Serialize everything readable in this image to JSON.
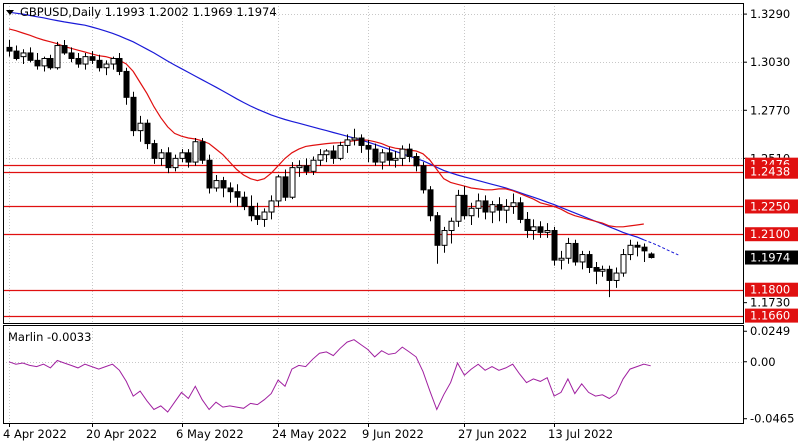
{
  "header": {
    "symbol_line": "GBPUSD,Daily  1.1993 1.2002 1.1969 1.1974"
  },
  "indicator": {
    "label": "Marlin -0.0033"
  },
  "colors": {
    "bull": "#000000",
    "bear": "#000000",
    "ma_fast": "#e01010",
    "ma_slow": "#1a1ad8",
    "level": "#e01010",
    "osc": "#a020a0",
    "grid": "#c8c8c8"
  },
  "chart_data": [
    {
      "type": "candlestick",
      "title": "GBPUSD,Daily",
      "ohlc_header": {
        "open": 1.1993,
        "high": 1.2002,
        "low": 1.1969,
        "close": 1.1974
      },
      "y_ticks": [
        "1.3290",
        "1.3030",
        "1.2770",
        "1.2510",
        "1.2250",
        "1.2100",
        "1.1974",
        "1.1800",
        "1.1730",
        "1.1660"
      ],
      "x_ticks": [
        "4 Apr 2022",
        "20 Apr 2022",
        "6 May 2022",
        "24 May 2022",
        "9 Jun 2022",
        "27 Jun 2022",
        "13 Jul 2022"
      ],
      "ylim": [
        1.162,
        1.335
      ],
      "levels": [
        {
          "value": 1.2476,
          "label": "1.2476"
        },
        {
          "value": 1.2438,
          "label": "1.2438"
        },
        {
          "value": 1.225,
          "label": "1.2250"
        },
        {
          "value": 1.21,
          "label": "1.2100"
        },
        {
          "value": 1.18,
          "label": "1.1800"
        },
        {
          "value": 1.166,
          "label": "1.1660"
        }
      ],
      "current_price": {
        "value": 1.1974,
        "label": "1.1974"
      },
      "candles": [
        [
          1.311,
          1.315,
          1.306,
          1.309
        ],
        [
          1.309,
          1.312,
          1.304,
          1.305
        ],
        [
          1.306,
          1.31,
          1.302,
          1.308
        ],
        [
          1.308,
          1.311,
          1.303,
          1.304
        ],
        [
          1.304,
          1.308,
          1.299,
          1.301
        ],
        [
          1.301,
          1.306,
          1.298,
          1.305
        ],
        [
          1.305,
          1.307,
          1.299,
          1.3
        ],
        [
          1.3,
          1.314,
          1.299,
          1.312
        ],
        [
          1.312,
          1.315,
          1.307,
          1.308
        ],
        [
          1.308,
          1.311,
          1.303,
          1.305
        ],
        [
          1.305,
          1.308,
          1.3,
          1.302
        ],
        [
          1.302,
          1.308,
          1.299,
          1.306
        ],
        [
          1.306,
          1.309,
          1.302,
          1.304
        ],
        [
          1.304,
          1.307,
          1.298,
          1.3
        ],
        [
          1.3,
          1.304,
          1.296,
          1.302
        ],
        [
          1.302,
          1.306,
          1.299,
          1.305
        ],
        [
          1.305,
          1.308,
          1.296,
          1.298
        ],
        [
          1.298,
          1.3,
          1.28,
          1.284
        ],
        [
          1.284,
          1.287,
          1.263,
          1.266
        ],
        [
          1.266,
          1.274,
          1.26,
          1.27
        ],
        [
          1.27,
          1.272,
          1.256,
          1.259
        ],
        [
          1.259,
          1.261,
          1.248,
          1.251
        ],
        [
          1.251,
          1.256,
          1.247,
          1.254
        ],
        [
          1.254,
          1.257,
          1.243,
          1.246
        ],
        [
          1.246,
          1.253,
          1.244,
          1.251
        ],
        [
          1.251,
          1.256,
          1.249,
          1.254
        ],
        [
          1.254,
          1.256,
          1.246,
          1.249
        ],
        [
          1.249,
          1.262,
          1.247,
          1.26
        ],
        [
          1.26,
          1.262,
          1.248,
          1.25
        ],
        [
          1.25,
          1.253,
          1.232,
          1.235
        ],
        [
          1.235,
          1.242,
          1.233,
          1.239
        ],
        [
          1.239,
          1.241,
          1.23,
          1.235
        ],
        [
          1.235,
          1.238,
          1.227,
          1.233
        ],
        [
          1.233,
          1.237,
          1.225,
          1.23
        ],
        [
          1.23,
          1.233,
          1.223,
          1.225
        ],
        [
          1.225,
          1.231,
          1.217,
          1.22
        ],
        [
          1.22,
          1.227,
          1.215,
          1.218
        ],
        [
          1.218,
          1.224,
          1.214,
          1.222
        ],
        [
          1.222,
          1.231,
          1.218,
          1.228
        ],
        [
          1.228,
          1.242,
          1.225,
          1.241
        ],
        [
          1.241,
          1.245,
          1.228,
          1.23
        ],
        [
          1.23,
          1.249,
          1.229,
          1.246
        ],
        [
          1.246,
          1.25,
          1.241,
          1.247
        ],
        [
          1.247,
          1.251,
          1.242,
          1.244
        ],
        [
          1.244,
          1.252,
          1.242,
          1.25
        ],
        [
          1.25,
          1.256,
          1.247,
          1.253
        ],
        [
          1.253,
          1.256,
          1.249,
          1.255
        ],
        [
          1.255,
          1.258,
          1.248,
          1.251
        ],
        [
          1.251,
          1.26,
          1.25,
          1.258
        ],
        [
          1.258,
          1.264,
          1.254,
          1.261
        ],
        [
          1.261,
          1.267,
          1.258,
          1.262
        ],
        [
          1.262,
          1.264,
          1.254,
          1.258
        ],
        [
          1.258,
          1.261,
          1.249,
          1.256
        ],
        [
          1.256,
          1.259,
          1.247,
          1.249
        ],
        [
          1.249,
          1.256,
          1.245,
          1.254
        ],
        [
          1.254,
          1.257,
          1.247,
          1.25
        ],
        [
          1.25,
          1.255,
          1.246,
          1.251
        ],
        [
          1.251,
          1.258,
          1.247,
          1.256
        ],
        [
          1.256,
          1.259,
          1.249,
          1.252
        ],
        [
          1.252,
          1.254,
          1.244,
          1.247
        ],
        [
          1.247,
          1.249,
          1.232,
          1.234
        ],
        [
          1.234,
          1.236,
          1.217,
          1.22
        ],
        [
          1.22,
          1.222,
          1.194,
          1.204
        ],
        [
          1.204,
          1.214,
          1.2,
          1.212
        ],
        [
          1.212,
          1.219,
          1.205,
          1.217
        ],
        [
          1.217,
          1.234,
          1.214,
          1.231
        ],
        [
          1.231,
          1.236,
          1.218,
          1.22
        ],
        [
          1.22,
          1.227,
          1.215,
          1.224
        ],
        [
          1.224,
          1.232,
          1.219,
          1.228
        ],
        [
          1.228,
          1.231,
          1.218,
          1.222
        ],
        [
          1.222,
          1.228,
          1.216,
          1.226
        ],
        [
          1.226,
          1.23,
          1.217,
          1.223
        ],
        [
          1.223,
          1.229,
          1.216,
          1.225
        ],
        [
          1.225,
          1.232,
          1.221,
          1.227
        ],
        [
          1.227,
          1.23,
          1.216,
          1.218
        ],
        [
          1.218,
          1.222,
          1.208,
          1.212
        ],
        [
          1.212,
          1.218,
          1.207,
          1.214
        ],
        [
          1.214,
          1.217,
          1.208,
          1.211
        ],
        [
          1.211,
          1.216,
          1.208,
          1.212
        ],
        [
          1.212,
          1.214,
          1.193,
          1.196
        ],
        [
          1.196,
          1.201,
          1.191,
          1.197
        ],
        [
          1.197,
          1.208,
          1.194,
          1.205
        ],
        [
          1.205,
          1.207,
          1.193,
          1.195
        ],
        [
          1.195,
          1.201,
          1.191,
          1.199
        ],
        [
          1.199,
          1.201,
          1.189,
          1.192
        ],
        [
          1.192,
          1.195,
          1.183,
          1.19
        ],
        [
          1.19,
          1.193,
          1.187,
          1.191
        ],
        [
          1.191,
          1.193,
          1.176,
          1.185
        ],
        [
          1.185,
          1.192,
          1.181,
          1.189
        ],
        [
          1.189,
          1.202,
          1.187,
          1.199
        ],
        [
          1.199,
          1.207,
          1.196,
          1.204
        ],
        [
          1.204,
          1.206,
          1.198,
          1.203
        ],
        [
          1.203,
          1.205,
          1.195,
          1.201
        ],
        [
          1.1993,
          1.2002,
          1.1969,
          1.1974
        ]
      ],
      "ma_fast": [
        1.321,
        1.32,
        1.3188,
        1.3176,
        1.3162,
        1.315,
        1.314,
        1.313,
        1.3115,
        1.3105,
        1.3095,
        1.3085,
        1.3075,
        1.3065,
        1.306,
        1.305,
        1.304,
        1.302,
        1.298,
        1.292,
        1.286,
        1.279,
        1.273,
        1.268,
        1.2645,
        1.263,
        1.262,
        1.2615,
        1.2605,
        1.259,
        1.256,
        1.253,
        1.249,
        1.245,
        1.242,
        1.24,
        1.239,
        1.24,
        1.243,
        1.247,
        1.251,
        1.254,
        1.256,
        1.2575,
        1.258,
        1.2585,
        1.259,
        1.2593,
        1.2595,
        1.26,
        1.2605,
        1.261,
        1.2608,
        1.26,
        1.259,
        1.2575,
        1.2565,
        1.256,
        1.2555,
        1.255,
        1.2535,
        1.25,
        1.245,
        1.24,
        1.238,
        1.237,
        1.236,
        1.235,
        1.2345,
        1.234,
        1.234,
        1.2345,
        1.2345,
        1.2335,
        1.232,
        1.2305,
        1.229,
        1.227,
        1.226,
        1.225,
        1.2235,
        1.2215,
        1.22,
        1.219,
        1.218,
        1.217,
        1.216,
        1.2145,
        1.214,
        1.214,
        1.2145,
        1.215,
        1.2155
      ],
      "ma_slow": [
        1.33,
        1.3295,
        1.329,
        1.3283,
        1.3276,
        1.327,
        1.3262,
        1.3255,
        1.3248,
        1.3242,
        1.3236,
        1.323,
        1.322,
        1.321,
        1.3198,
        1.3186,
        1.3172,
        1.3156,
        1.314,
        1.312,
        1.31,
        1.308,
        1.3058,
        1.3036,
        1.3015,
        1.2995,
        1.2975,
        1.2955,
        1.2935,
        1.2915,
        1.2895,
        1.2874,
        1.2853,
        1.2832,
        1.2812,
        1.2793,
        1.2776,
        1.276,
        1.2745,
        1.2732,
        1.272,
        1.271,
        1.27,
        1.269,
        1.268,
        1.267,
        1.266,
        1.265,
        1.264,
        1.263,
        1.262,
        1.261,
        1.2598,
        1.2586,
        1.2573,
        1.256,
        1.2548,
        1.2535,
        1.2522,
        1.251,
        1.2497,
        1.248,
        1.2462,
        1.2445,
        1.2432,
        1.242,
        1.241,
        1.24,
        1.239,
        1.238,
        1.237,
        1.236,
        1.235,
        1.2338,
        1.2325,
        1.2312,
        1.23,
        1.2287,
        1.2273,
        1.226,
        1.2245,
        1.223,
        1.2215,
        1.22,
        1.2185,
        1.217,
        1.2155,
        1.214,
        1.2125,
        1.211,
        1.2097,
        1.2085,
        1.207
      ],
      "ma_slow_projection": [
        1.2055,
        1.204,
        1.2022,
        1.2005,
        1.1988
      ]
    },
    {
      "type": "line",
      "title": "Marlin",
      "current": -0.0033,
      "y_ticks": [
        "0.0249",
        "0.00",
        "-0.0465"
      ],
      "ylim": [
        -0.05,
        0.03
      ],
      "values": [
        0.0,
        -0.002,
        -0.001,
        -0.003,
        -0.004,
        -0.002,
        -0.005,
        0.001,
        -0.001,
        -0.003,
        -0.005,
        -0.002,
        -0.004,
        -0.006,
        -0.004,
        -0.002,
        -0.007,
        -0.016,
        -0.028,
        -0.024,
        -0.032,
        -0.039,
        -0.036,
        -0.041,
        -0.033,
        -0.025,
        -0.03,
        -0.02,
        -0.031,
        -0.039,
        -0.033,
        -0.037,
        -0.036,
        -0.037,
        -0.038,
        -0.034,
        -0.035,
        -0.031,
        -0.026,
        -0.015,
        -0.02,
        -0.006,
        -0.003,
        -0.004,
        0.002,
        0.007,
        0.008,
        0.005,
        0.011,
        0.016,
        0.018,
        0.014,
        0.01,
        0.004,
        0.009,
        0.006,
        0.007,
        0.012,
        0.008,
        0.004,
        -0.008,
        -0.024,
        -0.039,
        -0.027,
        -0.017,
        -0.001,
        -0.011,
        -0.006,
        -0.002,
        -0.007,
        -0.004,
        -0.007,
        -0.005,
        -0.002,
        -0.01,
        -0.017,
        -0.014,
        -0.016,
        -0.013,
        -0.028,
        -0.025,
        -0.014,
        -0.026,
        -0.018,
        -0.025,
        -0.028,
        -0.027,
        -0.03,
        -0.026,
        -0.014,
        -0.006,
        -0.004,
        -0.002,
        -0.0033
      ]
    }
  ]
}
